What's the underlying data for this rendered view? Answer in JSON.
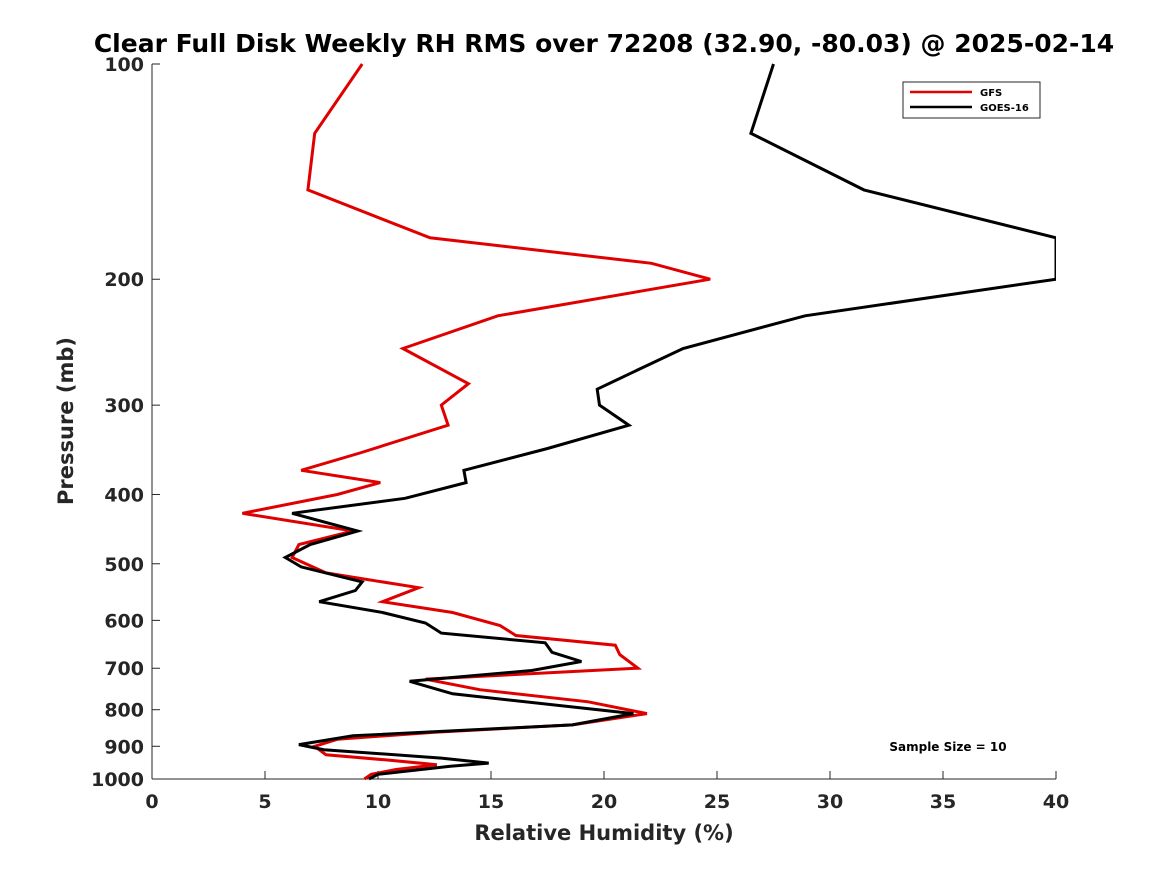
{
  "chart_data": {
    "type": "line",
    "title": "Clear Full Disk Weekly RH RMS over 72208 (32.90, -80.03) @ 2025-02-14",
    "xlabel": "Relative Humidity (%)",
    "ylabel": "Pressure (mb)",
    "xlim": [
      0,
      40
    ],
    "ylim": [
      100,
      1000
    ],
    "y_scale": "log",
    "y_reversed": true,
    "x_ticks": [
      "0",
      "5",
      "10",
      "15",
      "20",
      "25",
      "30",
      "35",
      "40"
    ],
    "y_ticks": [
      "100",
      "200",
      "300",
      "400",
      "500",
      "600",
      "700",
      "800",
      "900",
      "1000"
    ],
    "grid": false,
    "legend_position": "top-right",
    "annotation": "Sample Size = 10",
    "series": [
      {
        "name": "GFS",
        "color": "#e00000",
        "points": [
          [
            9.3,
            100
          ],
          [
            7.2,
            125
          ],
          [
            6.9,
            150
          ],
          [
            12.3,
            175
          ],
          [
            22.1,
            190
          ],
          [
            24.7,
            200
          ],
          [
            15.3,
            225
          ],
          [
            11.1,
            250
          ],
          [
            14.0,
            280
          ],
          [
            12.8,
            300
          ],
          [
            13.1,
            320
          ],
          [
            9.2,
            350
          ],
          [
            6.6,
            370
          ],
          [
            10.1,
            385
          ],
          [
            8.2,
            400
          ],
          [
            4.0,
            425
          ],
          [
            8.9,
            450
          ],
          [
            6.5,
            470
          ],
          [
            6.2,
            490
          ],
          [
            7.7,
            515
          ],
          [
            11.8,
            540
          ],
          [
            10.2,
            565
          ],
          [
            13.3,
            585
          ],
          [
            15.4,
            610
          ],
          [
            16.1,
            630
          ],
          [
            20.5,
            650
          ],
          [
            20.7,
            670
          ],
          [
            21.5,
            700
          ],
          [
            12.1,
            725
          ],
          [
            14.5,
            750
          ],
          [
            19.3,
            780
          ],
          [
            21.9,
            810
          ],
          [
            18.6,
            840
          ],
          [
            12.5,
            860
          ],
          [
            8.2,
            880
          ],
          [
            7.2,
            900
          ],
          [
            7.7,
            925
          ],
          [
            10.3,
            940
          ],
          [
            12.6,
            955
          ],
          [
            10.8,
            970
          ],
          [
            9.7,
            985
          ],
          [
            9.4,
            1000
          ]
        ]
      },
      {
        "name": "GOES-16",
        "color": "#000000",
        "points": [
          [
            27.5,
            100
          ],
          [
            26.5,
            125
          ],
          [
            31.5,
            150
          ],
          [
            40.0,
            175
          ],
          [
            40.0,
            200
          ],
          [
            28.9,
            225
          ],
          [
            23.5,
            250
          ],
          [
            21.8,
            265
          ],
          [
            19.7,
            285
          ],
          [
            19.8,
            300
          ],
          [
            21.1,
            320
          ],
          [
            17.5,
            345
          ],
          [
            13.8,
            370
          ],
          [
            13.9,
            385
          ],
          [
            11.2,
            405
          ],
          [
            6.2,
            425
          ],
          [
            9.1,
            450
          ],
          [
            7.0,
            470
          ],
          [
            5.9,
            490
          ],
          [
            6.6,
            505
          ],
          [
            9.3,
            530
          ],
          [
            9.0,
            545
          ],
          [
            7.4,
            565
          ],
          [
            10.2,
            585
          ],
          [
            12.1,
            605
          ],
          [
            12.8,
            625
          ],
          [
            17.4,
            645
          ],
          [
            17.7,
            665
          ],
          [
            19.0,
            685
          ],
          [
            16.8,
            705
          ],
          [
            11.4,
            730
          ],
          [
            13.3,
            760
          ],
          [
            21.3,
            810
          ],
          [
            18.6,
            840
          ],
          [
            8.9,
            870
          ],
          [
            6.5,
            895
          ],
          [
            7.6,
            910
          ],
          [
            12.8,
            935
          ],
          [
            14.9,
            950
          ],
          [
            13.2,
            960
          ],
          [
            10.0,
            985
          ],
          [
            9.6,
            1000
          ]
        ]
      }
    ]
  }
}
